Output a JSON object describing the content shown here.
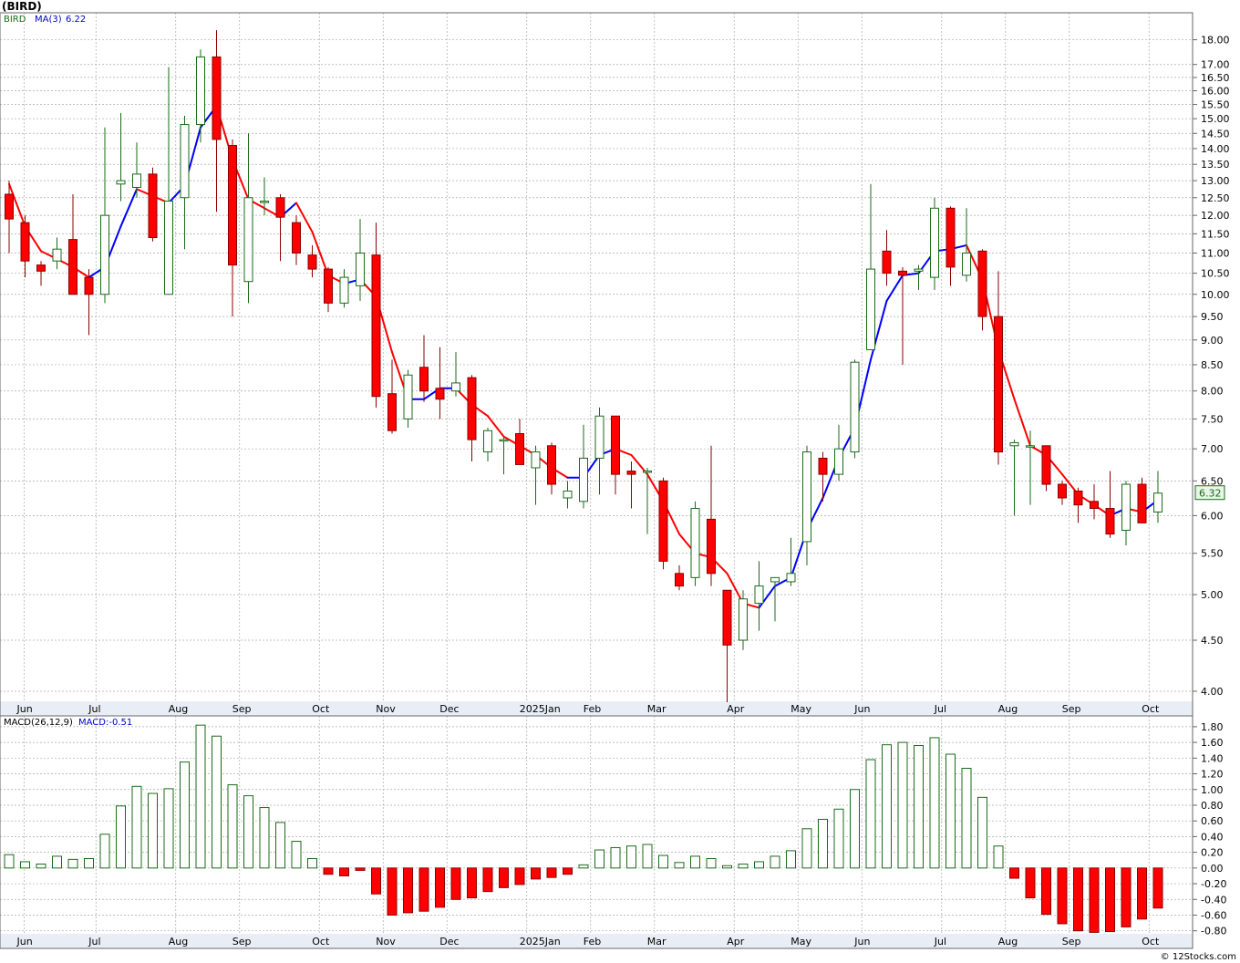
{
  "header": {
    "symbol": "(BIRD)",
    "legend_ticker": "BIRD",
    "legend_ma_label": "MA(3)",
    "legend_ma_value": "6.22",
    "macd_label": "MACD(26,12,9)",
    "macd_value_label": "MACD:-0.51",
    "last_price_badge": "6.32",
    "footer_credit": "© 12Stocks.com"
  },
  "colors": {
    "up_outline": "#1a6b1a",
    "down_fill": "#ff0000",
    "down_outline": "#8b0000",
    "ma_up": "#0000ff",
    "ma_down": "#ff0000",
    "grid": "#aaaaaa",
    "axis_band": "#e9eef6",
    "badge_fill": "#e8f5e8",
    "badge_stroke": "#1a6b1a"
  },
  "chart_data": [
    {
      "type": "candlestick",
      "title": "(BIRD)",
      "period": "weekly",
      "x_month_labels": [
        "Jun",
        "Jul",
        "Aug",
        "Sep",
        "Oct",
        "Nov",
        "Dec",
        "2025Jan",
        "Feb",
        "Mar",
        "Apr",
        "May",
        "Jun",
        "Jul",
        "Aug",
        "Sep",
        "Oct"
      ],
      "x_month_label_weeks": [
        1,
        5.5,
        10.5,
        14.5,
        19.5,
        23.5,
        27.5,
        32.5,
        36.5,
        40.5,
        45.5,
        49.5,
        53.5,
        58.5,
        62.5,
        66.5,
        71.5
      ],
      "y_scale": "log",
      "ylim": [
        3.9,
        18.6
      ],
      "y_ticks": [
        4.0,
        4.5,
        5.0,
        5.5,
        6.0,
        6.5,
        7.0,
        7.5,
        8.0,
        8.5,
        9.0,
        9.5,
        10.0,
        10.5,
        11.0,
        11.5,
        12.0,
        12.5,
        13.0,
        13.5,
        14.0,
        14.5,
        15.0,
        15.5,
        16.0,
        16.5,
        17.0,
        18.0
      ],
      "y_tick_labels": [
        "4.00",
        "4.50",
        "5.00",
        "5.50",
        "6.00",
        "6.50",
        "7.00",
        "7.50",
        "8.00",
        "8.50",
        "9.00",
        "9.50",
        "10.00",
        "10.50",
        "11.00",
        "11.50",
        "12.00",
        "12.50",
        "13.00",
        "13.50",
        "14.00",
        "14.50",
        "15.00",
        "15.50",
        "16.00",
        "16.50",
        "17.00",
        "18.00"
      ],
      "grid": true,
      "last_price": 6.32,
      "candles": [
        {
          "o": 12.6,
          "h": 13.0,
          "l": 11.0,
          "c": 11.9
        },
        {
          "o": 11.8,
          "h": 12.0,
          "l": 10.4,
          "c": 10.8
        },
        {
          "o": 10.7,
          "h": 10.8,
          "l": 10.2,
          "c": 10.55
        },
        {
          "o": 10.8,
          "h": 11.4,
          "l": 10.6,
          "c": 11.1
        },
        {
          "o": 11.35,
          "h": 12.6,
          "l": 10.0,
          "c": 10.0
        },
        {
          "o": 10.4,
          "h": 10.6,
          "l": 9.1,
          "c": 10.0
        },
        {
          "o": 10.0,
          "h": 14.7,
          "l": 9.8,
          "c": 12.0
        },
        {
          "o": 12.9,
          "h": 15.2,
          "l": 12.4,
          "c": 13.0
        },
        {
          "o": 12.8,
          "h": 14.2,
          "l": 12.5,
          "c": 13.2
        },
        {
          "o": 13.2,
          "h": 13.4,
          "l": 11.3,
          "c": 11.4
        },
        {
          "o": 10.0,
          "h": 16.9,
          "l": 10.0,
          "c": 12.4
        },
        {
          "o": 12.5,
          "h": 15.1,
          "l": 11.1,
          "c": 14.8
        },
        {
          "o": 14.8,
          "h": 17.6,
          "l": 14.2,
          "c": 17.3
        },
        {
          "o": 17.3,
          "h": 18.4,
          "l": 12.1,
          "c": 14.3
        },
        {
          "o": 14.1,
          "h": 14.3,
          "l": 9.5,
          "c": 10.7
        },
        {
          "o": 10.3,
          "h": 14.5,
          "l": 9.8,
          "c": 12.5
        },
        {
          "o": 12.4,
          "h": 13.1,
          "l": 12.0,
          "c": 12.4
        },
        {
          "o": 12.5,
          "h": 12.6,
          "l": 10.8,
          "c": 11.95
        },
        {
          "o": 11.8,
          "h": 12.0,
          "l": 10.7,
          "c": 11.0
        },
        {
          "o": 10.95,
          "h": 11.2,
          "l": 10.4,
          "c": 10.6
        },
        {
          "o": 10.6,
          "h": 10.65,
          "l": 9.6,
          "c": 9.8
        },
        {
          "o": 9.8,
          "h": 10.6,
          "l": 9.7,
          "c": 10.4
        },
        {
          "o": 10.2,
          "h": 11.9,
          "l": 9.85,
          "c": 11.0
        },
        {
          "o": 10.95,
          "h": 11.8,
          "l": 7.7,
          "c": 7.9
        },
        {
          "o": 7.95,
          "h": 8.6,
          "l": 7.25,
          "c": 7.3
        },
        {
          "o": 7.5,
          "h": 8.4,
          "l": 7.35,
          "c": 8.3
        },
        {
          "o": 8.45,
          "h": 9.1,
          "l": 7.8,
          "c": 8.0
        },
        {
          "o": 8.05,
          "h": 8.85,
          "l": 7.5,
          "c": 7.85
        },
        {
          "o": 8.0,
          "h": 8.75,
          "l": 7.9,
          "c": 8.15
        },
        {
          "o": 8.25,
          "h": 8.3,
          "l": 6.8,
          "c": 7.15
        },
        {
          "o": 6.95,
          "h": 7.35,
          "l": 6.8,
          "c": 7.3
        },
        {
          "o": 7.15,
          "h": 7.2,
          "l": 6.6,
          "c": 7.15
        },
        {
          "o": 7.25,
          "h": 7.5,
          "l": 6.75,
          "c": 6.75
        },
        {
          "o": 6.7,
          "h": 7.05,
          "l": 6.15,
          "c": 6.95
        },
        {
          "o": 7.05,
          "h": 7.1,
          "l": 6.3,
          "c": 6.45
        },
        {
          "o": 6.25,
          "h": 6.5,
          "l": 6.1,
          "c": 6.35
        },
        {
          "o": 6.2,
          "h": 7.4,
          "l": 6.1,
          "c": 6.85
        },
        {
          "o": 6.85,
          "h": 7.7,
          "l": 6.3,
          "c": 7.55
        },
        {
          "o": 7.55,
          "h": 7.55,
          "l": 6.3,
          "c": 6.6
        },
        {
          "o": 6.65,
          "h": 6.8,
          "l": 6.1,
          "c": 6.6
        },
        {
          "o": 6.65,
          "h": 6.7,
          "l": 5.75,
          "c": 6.65
        },
        {
          "o": 6.5,
          "h": 6.55,
          "l": 5.3,
          "c": 5.4
        },
        {
          "o": 5.25,
          "h": 5.35,
          "l": 5.05,
          "c": 5.1
        },
        {
          "o": 5.2,
          "h": 6.2,
          "l": 5.1,
          "c": 6.1
        },
        {
          "o": 5.95,
          "h": 7.05,
          "l": 5.1,
          "c": 5.25
        },
        {
          "o": 5.05,
          "h": 5.05,
          "l": 3.9,
          "c": 4.45
        },
        {
          "o": 4.5,
          "h": 5.05,
          "l": 4.4,
          "c": 4.95
        },
        {
          "o": 4.9,
          "h": 5.4,
          "l": 4.6,
          "c": 5.1
        },
        {
          "o": 5.15,
          "h": 5.2,
          "l": 4.7,
          "c": 5.2
        },
        {
          "o": 5.15,
          "h": 5.7,
          "l": 5.1,
          "c": 5.25
        },
        {
          "o": 5.65,
          "h": 7.05,
          "l": 5.35,
          "c": 6.95
        },
        {
          "o": 6.85,
          "h": 6.95,
          "l": 6.2,
          "c": 6.6
        },
        {
          "o": 6.6,
          "h": 7.4,
          "l": 6.5,
          "c": 7.0
        },
        {
          "o": 6.95,
          "h": 8.6,
          "l": 6.85,
          "c": 8.55
        },
        {
          "o": 8.8,
          "h": 12.9,
          "l": 8.8,
          "c": 10.6
        },
        {
          "o": 11.05,
          "h": 11.6,
          "l": 10.2,
          "c": 10.5
        },
        {
          "o": 10.55,
          "h": 10.65,
          "l": 8.5,
          "c": 10.45
        },
        {
          "o": 10.55,
          "h": 10.7,
          "l": 10.1,
          "c": 10.6
        },
        {
          "o": 10.4,
          "h": 12.5,
          "l": 10.1,
          "c": 12.2
        },
        {
          "o": 12.2,
          "h": 12.25,
          "l": 10.2,
          "c": 10.65
        },
        {
          "o": 10.45,
          "h": 12.2,
          "l": 10.3,
          "c": 11.0
        },
        {
          "o": 11.05,
          "h": 11.1,
          "l": 9.2,
          "c": 9.5
        },
        {
          "o": 9.5,
          "h": 10.55,
          "l": 6.75,
          "c": 6.95
        },
        {
          "o": 7.05,
          "h": 7.15,
          "l": 6.0,
          "c": 7.1
        },
        {
          "o": 7.05,
          "h": 7.3,
          "l": 6.15,
          "c": 7.05
        },
        {
          "o": 7.05,
          "h": 7.05,
          "l": 6.35,
          "c": 6.45
        },
        {
          "o": 6.45,
          "h": 6.5,
          "l": 6.15,
          "c": 6.25
        },
        {
          "o": 6.35,
          "h": 6.4,
          "l": 5.9,
          "c": 6.15
        },
        {
          "o": 6.2,
          "h": 6.45,
          "l": 5.95,
          "c": 6.1
        },
        {
          "o": 6.1,
          "h": 6.65,
          "l": 5.7,
          "c": 5.75
        },
        {
          "o": 5.8,
          "h": 6.5,
          "l": 5.6,
          "c": 6.45
        },
        {
          "o": 6.45,
          "h": 6.55,
          "l": 5.9,
          "c": 5.9
        },
        {
          "o": 6.05,
          "h": 6.65,
          "l": 5.9,
          "c": 6.32
        }
      ],
      "ma_name": "MA(3)",
      "ma_values": [
        12.9,
        11.7,
        11.05,
        10.85,
        10.65,
        10.4,
        10.65,
        11.7,
        12.75,
        12.55,
        12.35,
        12.85,
        14.7,
        15.45,
        13.65,
        12.45,
        12.2,
        11.95,
        12.35,
        11.55,
        10.45,
        10.25,
        10.35,
        9.95,
        8.75,
        7.85,
        7.85,
        8.05,
        8.05,
        7.75,
        7.55,
        7.2,
        7.05,
        6.9,
        6.7,
        6.55,
        6.55,
        6.9,
        7.0,
        6.9,
        6.6,
        6.2,
        5.75,
        5.5,
        5.45,
        5.25,
        4.9,
        4.85,
        5.1,
        5.2,
        5.8,
        6.25,
        6.85,
        7.35,
        8.6,
        9.85,
        10.45,
        10.5,
        11.05,
        11.1,
        11.2,
        10.35,
        8.8,
        7.85,
        7.05,
        6.9,
        6.6,
        6.3,
        6.15,
        6.0,
        6.1,
        6.05,
        6.22
      ],
      "ma_value": 6.22
    },
    {
      "type": "bar",
      "title": "MACD(26,12,9)",
      "value_label": "MACD:-0.51",
      "ylim": [
        -0.85,
        1.88
      ],
      "y_ticks": [
        -0.8,
        -0.6,
        -0.4,
        -0.2,
        0.0,
        0.2,
        0.4,
        0.6,
        0.8,
        1.0,
        1.2,
        1.4,
        1.6,
        1.8
      ],
      "y_tick_labels": [
        "-0.80",
        "-0.60",
        "-0.40",
        "-0.20",
        "0.00",
        "0.20",
        "0.40",
        "0.60",
        "0.80",
        "1.00",
        "1.20",
        "1.40",
        "1.60",
        "1.80"
      ],
      "x_month_labels": [
        "Jun",
        "Jul",
        "Aug",
        "Sep",
        "Oct",
        "Nov",
        "Dec",
        "2025Jan",
        "Feb",
        "Mar",
        "Apr",
        "May",
        "Jun",
        "Jul",
        "Aug",
        "Sep",
        "Oct"
      ],
      "values": [
        0.17,
        0.08,
        0.05,
        0.15,
        0.11,
        0.12,
        0.43,
        0.79,
        1.04,
        0.95,
        1.01,
        1.35,
        1.82,
        1.68,
        1.06,
        0.92,
        0.77,
        0.58,
        0.34,
        0.12,
        -0.08,
        -0.1,
        -0.03,
        -0.33,
        -0.6,
        -0.57,
        -0.55,
        -0.5,
        -0.4,
        -0.38,
        -0.3,
        -0.25,
        -0.21,
        -0.14,
        -0.12,
        -0.08,
        0.04,
        0.23,
        0.26,
        0.28,
        0.3,
        0.16,
        0.07,
        0.15,
        0.12,
        0.03,
        0.05,
        0.08,
        0.15,
        0.22,
        0.5,
        0.62,
        0.75,
        1.0,
        1.38,
        1.57,
        1.6,
        1.56,
        1.66,
        1.45,
        1.27,
        0.9,
        0.28,
        -0.13,
        -0.38,
        -0.59,
        -0.71,
        -0.8,
        -0.82,
        -0.81,
        -0.75,
        -0.65,
        -0.51
      ]
    }
  ]
}
